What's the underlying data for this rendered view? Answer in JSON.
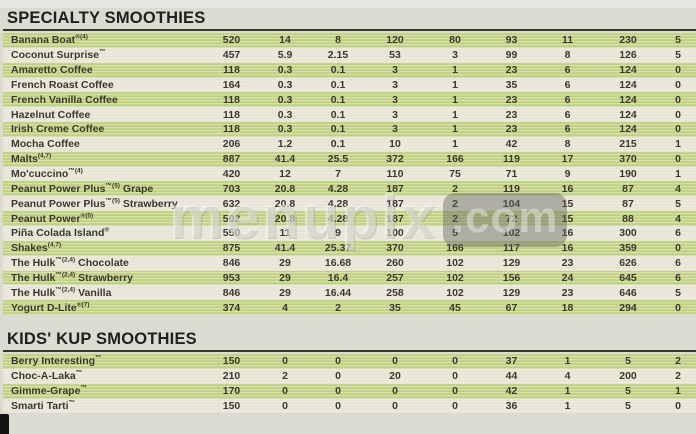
{
  "page": {
    "background_color": "#dcdbd3",
    "row_green_color": "#c6d688",
    "row_white_color": "#ebe9dc",
    "text_color": "#3a392f"
  },
  "watermark": {
    "text": "menupix",
    "suffix": ".com"
  },
  "sections": [
    {
      "title": "SPECIALTY SMOOTHIES",
      "rows": [
        {
          "name": "Banana Boat®(4)",
          "values": [
            "520",
            "14",
            "8",
            "120",
            "80",
            "93",
            "11",
            "230",
            "5"
          ]
        },
        {
          "name": "Coconut Surprise™",
          "values": [
            "457",
            "5.9",
            "2.15",
            "53",
            "3",
            "99",
            "8",
            "126",
            "5"
          ]
        },
        {
          "name": "Amaretto Coffee",
          "values": [
            "118",
            "0.3",
            "0.1",
            "3",
            "1",
            "23",
            "6",
            "124",
            "0"
          ]
        },
        {
          "name": "French Roast Coffee",
          "values": [
            "164",
            "0.3",
            "0.1",
            "3",
            "1",
            "35",
            "6",
            "124",
            "0"
          ]
        },
        {
          "name": "French Vanilla Coffee",
          "values": [
            "118",
            "0.3",
            "0.1",
            "3",
            "1",
            "23",
            "6",
            "124",
            "0"
          ]
        },
        {
          "name": "Hazelnut Coffee",
          "values": [
            "118",
            "0.3",
            "0.1",
            "3",
            "1",
            "23",
            "6",
            "124",
            "0"
          ]
        },
        {
          "name": "Irish Creme Coffee",
          "values": [
            "118",
            "0.3",
            "0.1",
            "3",
            "1",
            "23",
            "6",
            "124",
            "0"
          ]
        },
        {
          "name": "Mocha Coffee",
          "values": [
            "206",
            "1.2",
            "0.1",
            "10",
            "1",
            "42",
            "8",
            "215",
            "1"
          ]
        },
        {
          "name": "Malts(4,7)",
          "values": [
            "887",
            "41.4",
            "25.5",
            "372",
            "166",
            "119",
            "17",
            "370",
            "0"
          ]
        },
        {
          "name": "Mo'cuccino™(4)",
          "values": [
            "420",
            "12",
            "7",
            "110",
            "75",
            "71",
            "9",
            "190",
            "1"
          ]
        },
        {
          "name": "Peanut Power Plus™(5) Grape",
          "values": [
            "703",
            "20.8",
            "4.28",
            "187",
            "2",
            "119",
            "16",
            "87",
            "4"
          ]
        },
        {
          "name": "Peanut Power Plus™(5) Strawberry",
          "values": [
            "632",
            "20.8",
            "4.28",
            "187",
            "2",
            "104",
            "15",
            "87",
            "5"
          ]
        },
        {
          "name": "Peanut Power®(5)",
          "values": [
            "502",
            "20.8",
            "4.28",
            "187",
            "2",
            "72",
            "15",
            "88",
            "4"
          ]
        },
        {
          "name": "Piña Colada Island®",
          "values": [
            "550",
            "11",
            "9",
            "100",
            "5",
            "102",
            "16",
            "300",
            "6"
          ]
        },
        {
          "name": "Shakes(4,7)",
          "values": [
            "875",
            "41.4",
            "25.37",
            "370",
            "166",
            "117",
            "16",
            "359",
            "0"
          ]
        },
        {
          "name": "The Hulk™(2,4) Chocolate",
          "values": [
            "846",
            "29",
            "16.68",
            "260",
            "102",
            "129",
            "23",
            "626",
            "6"
          ]
        },
        {
          "name": "The Hulk™(2,4) Strawberry",
          "values": [
            "953",
            "29",
            "16.4",
            "257",
            "102",
            "156",
            "24",
            "645",
            "6"
          ]
        },
        {
          "name": "The Hulk™(2,4) Vanilla",
          "values": [
            "846",
            "29",
            "16.44",
            "258",
            "102",
            "129",
            "23",
            "646",
            "5"
          ]
        },
        {
          "name": "Yogurt D-Lite®(7)",
          "values": [
            "374",
            "4",
            "2",
            "35",
            "45",
            "67",
            "18",
            "294",
            "0"
          ]
        }
      ]
    },
    {
      "title": "KIDS' KUP SMOOTHIES",
      "rows": [
        {
          "name": "Berry Interesting™",
          "values": [
            "150",
            "0",
            "0",
            "0",
            "0",
            "37",
            "1",
            "5",
            "2"
          ]
        },
        {
          "name": "Choc-A-Laka™",
          "values": [
            "210",
            "2",
            "0",
            "20",
            "0",
            "44",
            "4",
            "200",
            "2"
          ]
        },
        {
          "name": "Gimme-Grape™",
          "values": [
            "170",
            "0",
            "0",
            "0",
            "0",
            "42",
            "1",
            "5",
            "1"
          ]
        },
        {
          "name": "Smarti Tarti™",
          "values": [
            "150",
            "0",
            "0",
            "0",
            "0",
            "36",
            "1",
            "5",
            "0"
          ]
        }
      ]
    }
  ]
}
